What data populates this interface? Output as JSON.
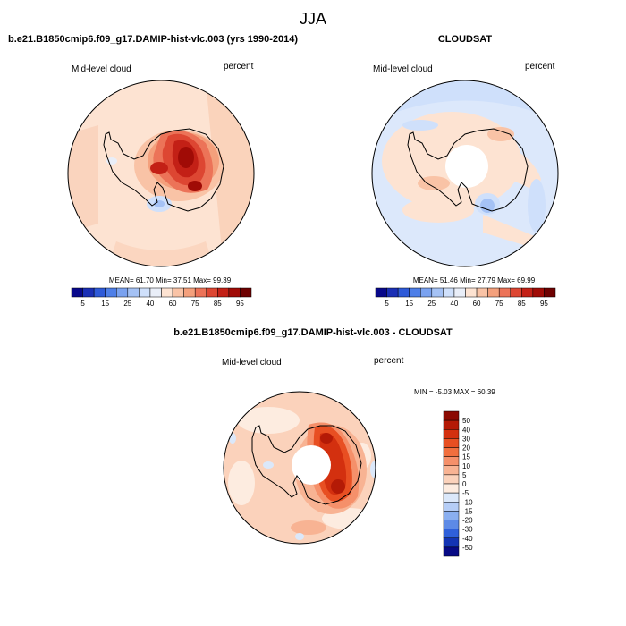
{
  "figure": {
    "title": "JJA",
    "bottom_title": "b.e21.B1850cmip6.f09_g17.DAMIP-hist-vlc.003 - CLOUDSAT"
  },
  "chart_data": [
    {
      "type": "heatmap",
      "projection": "south-polar-stereographic",
      "title": "b.e21.B1850cmip6.f09_g17.DAMIP-hist-vlc.003 (yrs 1990-2014)",
      "left_label": "Mid-level cloud",
      "right_label": "percent",
      "stats": {
        "MEAN": "61.70",
        "Min": "37.51",
        "Max": "99.39"
      },
      "stats_text": "MEAN=  61.70  Min=  37.51  Max=  99.39",
      "colorbar": {
        "orientation": "horizontal",
        "levels": [
          5,
          10,
          15,
          20,
          25,
          30,
          40,
          50,
          60,
          70,
          75,
          80,
          85,
          90,
          95
        ],
        "tick_labels": [
          "5",
          "15",
          "25",
          "40",
          "60",
          "75",
          "85",
          "95"
        ],
        "colors": [
          "#08088a",
          "#1a2fb5",
          "#2e5ad8",
          "#4e7fe8",
          "#7aa2f0",
          "#a5c2f5",
          "#cfe0fb",
          "#e9eef8",
          "#fde3d2",
          "#f9c3a6",
          "#f4a07c",
          "#ec7358",
          "#dd4632",
          "#c32016",
          "#a00b06",
          "#6e0101"
        ]
      },
      "field_description": "Mostly light orange (60-70%); dark red maxima over East Antarctica; pale blue patches near the Ross Sea and Weddell Sea edges."
    },
    {
      "type": "heatmap",
      "projection": "south-polar-stereographic",
      "title": "CLOUDSAT",
      "left_label": "Mid-level cloud",
      "right_label": "percent",
      "stats": {
        "MEAN": "51.46",
        "Min": "27.79",
        "Max": "69.99"
      },
      "stats_text": "MEAN=  51.46  Min=  27.79  Max=  69.99",
      "colorbar": {
        "orientation": "horizontal",
        "levels": [
          5,
          10,
          15,
          20,
          25,
          30,
          40,
          50,
          60,
          70,
          75,
          80,
          85,
          90,
          95
        ],
        "tick_labels": [
          "5",
          "15",
          "25",
          "40",
          "60",
          "75",
          "85",
          "95"
        ],
        "colors": [
          "#08088a",
          "#1a2fb5",
          "#2e5ad8",
          "#4e7fe8",
          "#7aa2f0",
          "#a5c2f5",
          "#cfe0fb",
          "#e9eef8",
          "#fde3d2",
          "#f9c3a6",
          "#f4a07c",
          "#ec7358",
          "#dd4632",
          "#c32016",
          "#a00b06",
          "#6e0101"
        ]
      },
      "field_description": "Pale blue (40-50%) over outer ocean; light orange (50-60%) bands near Antarctica; missing data hole over the pole."
    },
    {
      "type": "heatmap",
      "projection": "south-polar-stereographic",
      "title": "b.e21.B1850cmip6.f09_g17.DAMIP-hist-vlc.003 - CLOUDSAT",
      "left_label": "Mid-level cloud",
      "right_label": "percent",
      "stats": {
        "MIN": "-5.03",
        "MAX": "60.39"
      },
      "stats_text": "MIN =  -5.03 MAX =  60.39",
      "colorbar": {
        "orientation": "vertical",
        "levels": [
          -50,
          -40,
          -30,
          -20,
          -15,
          -10,
          -5,
          0,
          5,
          10,
          15,
          20,
          30,
          40,
          50
        ],
        "tick_labels": [
          "50",
          "40",
          "30",
          "20",
          "15",
          "10",
          "5",
          "0",
          "-5",
          "-10",
          "-15",
          "-20",
          "-30",
          "-40",
          "-50"
        ],
        "colors_top_to_bottom": [
          "#8b0a02",
          "#b41a06",
          "#d3300f",
          "#e84f22",
          "#f16f3e",
          "#f5906a",
          "#f8b393",
          "#fbd2bb",
          "#fdece0",
          "#dbe8fa",
          "#b5cdf6",
          "#8aaff0",
          "#5d8ae6",
          "#2f60da",
          "#1334b4",
          "#070a85"
        ]
      },
      "field_description": "Light orange positive differences nearly everywhere; dark red maxima over East Antarctica; a few pale blue spots; polar data hole."
    }
  ]
}
